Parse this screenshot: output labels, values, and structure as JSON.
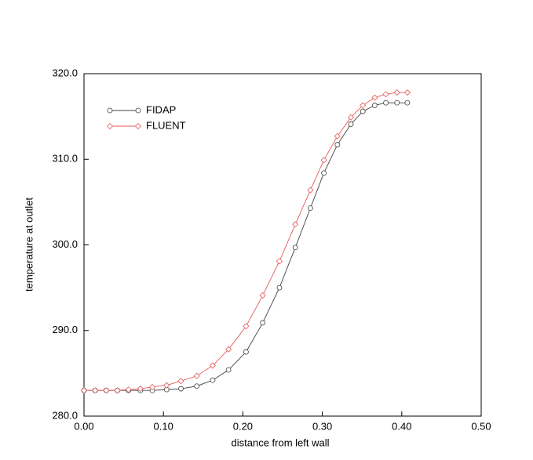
{
  "chart_data": {
    "type": "line",
    "x_label": "distance from left wall",
    "y_label": "temperature at outlet",
    "x": [
      0,
      0.014,
      0.028,
      0.042,
      0.056,
      0.071,
      0.086,
      0.104,
      0.122,
      0.142,
      0.162,
      0.182,
      0.204,
      0.225,
      0.246,
      0.266,
      0.285,
      0.302,
      0.319,
      0.336,
      0.351,
      0.366,
      0.38,
      0.394,
      0.407
    ],
    "series": [
      {
        "name": "FIDAP",
        "color": "#404040",
        "marker": "circle",
        "values": [
          283.0,
          283.0,
          283.0,
          283.0,
          283.0,
          283.0,
          283.0,
          283.1,
          283.2,
          283.5,
          284.2,
          285.4,
          287.5,
          290.9,
          295.0,
          299.7,
          304.3,
          308.4,
          311.7,
          314.1,
          315.6,
          316.3,
          316.6,
          316.6,
          316.6
        ]
      },
      {
        "name": "FLUENT",
        "color": "#e85a5a",
        "marker": "diamond",
        "values": [
          283.0,
          283.0,
          283.0,
          283.0,
          283.1,
          283.2,
          283.4,
          283.6,
          284.1,
          284.7,
          285.9,
          287.8,
          290.5,
          294.1,
          298.1,
          302.4,
          306.4,
          309.9,
          312.7,
          314.9,
          316.3,
          317.2,
          317.6,
          317.8,
          317.8
        ]
      }
    ],
    "xlim": [
      0,
      0.5
    ],
    "xticks": [
      {
        "value": 0,
        "label": "0.00"
      },
      {
        "value": 0.1,
        "label": "0.10"
      },
      {
        "value": 0.2,
        "label": "0.20"
      },
      {
        "value": 0.3,
        "label": "0.30"
      },
      {
        "value": 0.4,
        "label": "0.40"
      },
      {
        "value": 0.5,
        "label": "0.50"
      }
    ],
    "ylim": [
      280,
      320
    ],
    "yticks": [
      {
        "value": 280,
        "label": "280.0"
      },
      {
        "value": 290,
        "label": "290.0"
      },
      {
        "value": 300,
        "label": "300.0"
      },
      {
        "value": 310,
        "label": "310.0"
      },
      {
        "value": 320,
        "label": "320.0"
      }
    ],
    "grid": false,
    "legend": "upper-left"
  }
}
